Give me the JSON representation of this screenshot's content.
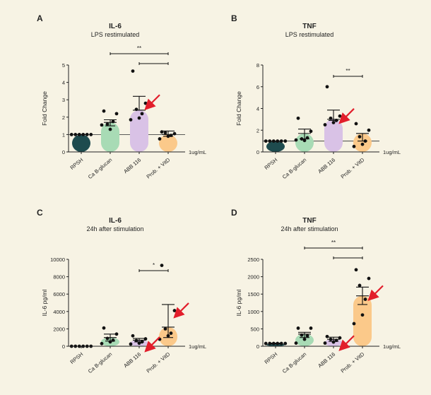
{
  "page": {
    "background": "#f7f3e4"
  },
  "colors": {
    "RPSH": "#1e4b4e",
    "Ca B-glucan": "#a8dbb5",
    "ABB 116": "#d9c2e6",
    "Prob. + VitD": "#fbc98a",
    "arrow": "#e21e2b",
    "dot": "#111111"
  },
  "chart_data": [
    {
      "panel_letter": "A",
      "type": "bar",
      "title": "IL-6",
      "subtitle": "LPS restimulated",
      "xlabel": "",
      "ylabel": "Fold Change",
      "unit_label": "1ug/mL",
      "categories": [
        "RPSH",
        "Ca B-glucan",
        "ABB 116",
        "Prob. + VitD"
      ],
      "ylim": [
        0,
        5
      ],
      "yticks": [
        "0",
        "1",
        "2",
        "3",
        "4",
        "5"
      ],
      "reference_line": 1,
      "means": [
        1.0,
        1.7,
        2.4,
        1.0
      ],
      "error_high": [
        1.0,
        1.85,
        3.2,
        1.2
      ],
      "error_low": [
        1.0,
        1.5,
        2.4,
        0.9
      ],
      "points": [
        [
          1,
          1,
          1,
          1,
          1,
          1
        ],
        [
          2.35,
          2.2,
          1.6,
          1.75,
          1.3,
          1.55
        ],
        [
          4.65,
          2.8,
          2.45,
          2.2,
          1.95,
          1.85
        ],
        [
          1.15,
          1.05,
          1.1,
          0.95,
          0.9,
          0.75
        ]
      ],
      "arrows": [
        2
      ],
      "significance": [
        {
          "from": 1,
          "to": 3,
          "label": "**"
        },
        {
          "from": 2,
          "to": 3,
          "label": ""
        }
      ]
    },
    {
      "panel_letter": "B",
      "type": "bar",
      "title": "TNF",
      "subtitle": "LPS restimulated",
      "xlabel": "",
      "ylabel": "Fold Change",
      "unit_label": "1ug/mL",
      "categories": [
        "RPSH",
        "Ca B-glucan",
        "ABB 116",
        "Prob. + VitD"
      ],
      "ylim": [
        0,
        8
      ],
      "yticks": [
        "0",
        "2",
        "4",
        "6",
        "8"
      ],
      "reference_line": 1,
      "means": [
        1.0,
        1.7,
        3.0,
        1.7
      ],
      "error_high": [
        1.0,
        2.1,
        3.85,
        1.7
      ],
      "error_low": [
        1.0,
        1.2,
        2.9,
        1.0
      ],
      "points": [
        [
          1,
          1,
          1,
          1,
          1,
          1
        ],
        [
          3.1,
          1.9,
          1.2,
          1.3,
          1.05,
          1.1
        ],
        [
          6.0,
          3.3,
          3.1,
          2.9,
          2.7,
          2.5
        ],
        [
          2.6,
          2.0,
          1.4,
          1.0,
          0.7,
          0.5
        ]
      ],
      "arrows": [
        2
      ],
      "significance": [
        {
          "from": 2,
          "to": 3,
          "label": "**"
        }
      ]
    },
    {
      "panel_letter": "C",
      "type": "bar",
      "title": "IL-6",
      "subtitle": "24h after stimulation",
      "xlabel": "",
      "ylabel": "IL-6 pg/ml",
      "unit_label": "1ug/mL",
      "categories": [
        "RPSH",
        "Ca B-glucan",
        "ABB 116",
        "Prob. + VitD"
      ],
      "ylim": [
        0,
        10000
      ],
      "yticks": [
        "0",
        "2000",
        "4000",
        "6000",
        "8000",
        "10000"
      ],
      "reference_line": null,
      "means": [
        0,
        1000,
        700,
        2200
      ],
      "error_high": [
        0,
        1400,
        900,
        4800
      ],
      "error_low": [
        0,
        600,
        500,
        1000
      ],
      "points": [
        [
          0,
          0,
          0,
          0,
          0,
          0
        ],
        [
          2100,
          1400,
          900,
          700,
          500,
          300
        ],
        [
          1200,
          850,
          650,
          500,
          350,
          250
        ],
        [
          9300,
          4100,
          2000,
          1500,
          1200,
          800
        ]
      ],
      "arrows": [
        2,
        3
      ],
      "significance": [
        {
          "from": 2,
          "to": 3,
          "label": "*"
        }
      ]
    },
    {
      "panel_letter": "D",
      "type": "bar",
      "title": "TNF",
      "subtitle": "24h after stimulation",
      "xlabel": "",
      "ylabel": "IL-6 pg/ml",
      "unit_label": "1ug/mL",
      "categories": [
        "RPSH",
        "Ca B-glucan",
        "ABB 116",
        "Prob. + VitD"
      ],
      "ylim": [
        0,
        2500
      ],
      "yticks": [
        "0",
        "500",
        "1000",
        "1500",
        "2000",
        "2500"
      ],
      "reference_line": null,
      "means": [
        80,
        350,
        200,
        1450
      ],
      "error_high": [
        90,
        400,
        260,
        1700
      ],
      "error_low": [
        70,
        250,
        140,
        1200
      ],
      "points": [
        [
          80,
          80,
          80,
          80,
          80,
          80
        ],
        [
          520,
          520,
          320,
          300,
          200,
          90
        ],
        [
          280,
          240,
          200,
          170,
          120,
          90
        ],
        [
          2200,
          1950,
          1750,
          1350,
          900,
          650
        ]
      ],
      "arrows": [
        2,
        3
      ],
      "significance": [
        {
          "from": 1,
          "to": 3,
          "label": "**"
        },
        {
          "from": 2,
          "to": 3,
          "label": ""
        }
      ]
    }
  ]
}
